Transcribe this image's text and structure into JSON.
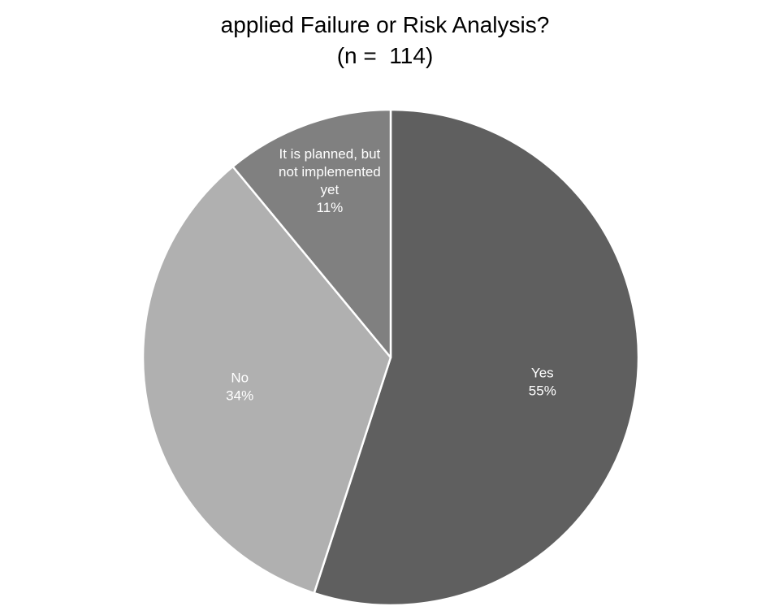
{
  "chart_data": {
    "type": "pie",
    "title_lines": [
      "applied Failure or Risk Analysis?",
      "(n =  114)"
    ],
    "slices": [
      {
        "label_lines": [
          "Yes"
        ],
        "value": 55,
        "value_label": "55%",
        "color": "#5f5f5f"
      },
      {
        "label_lines": [
          "No"
        ],
        "value": 34,
        "value_label": "34%",
        "color": "#b0b0b0"
      },
      {
        "label_lines": [
          "It is planned, but",
          "not implemented",
          "yet"
        ],
        "value": 11,
        "value_label": "11%",
        "color": "#808080"
      }
    ],
    "start_angle_deg": 0,
    "direction": "clockwise",
    "slice_border_color": "#ffffff",
    "legend": "none"
  }
}
